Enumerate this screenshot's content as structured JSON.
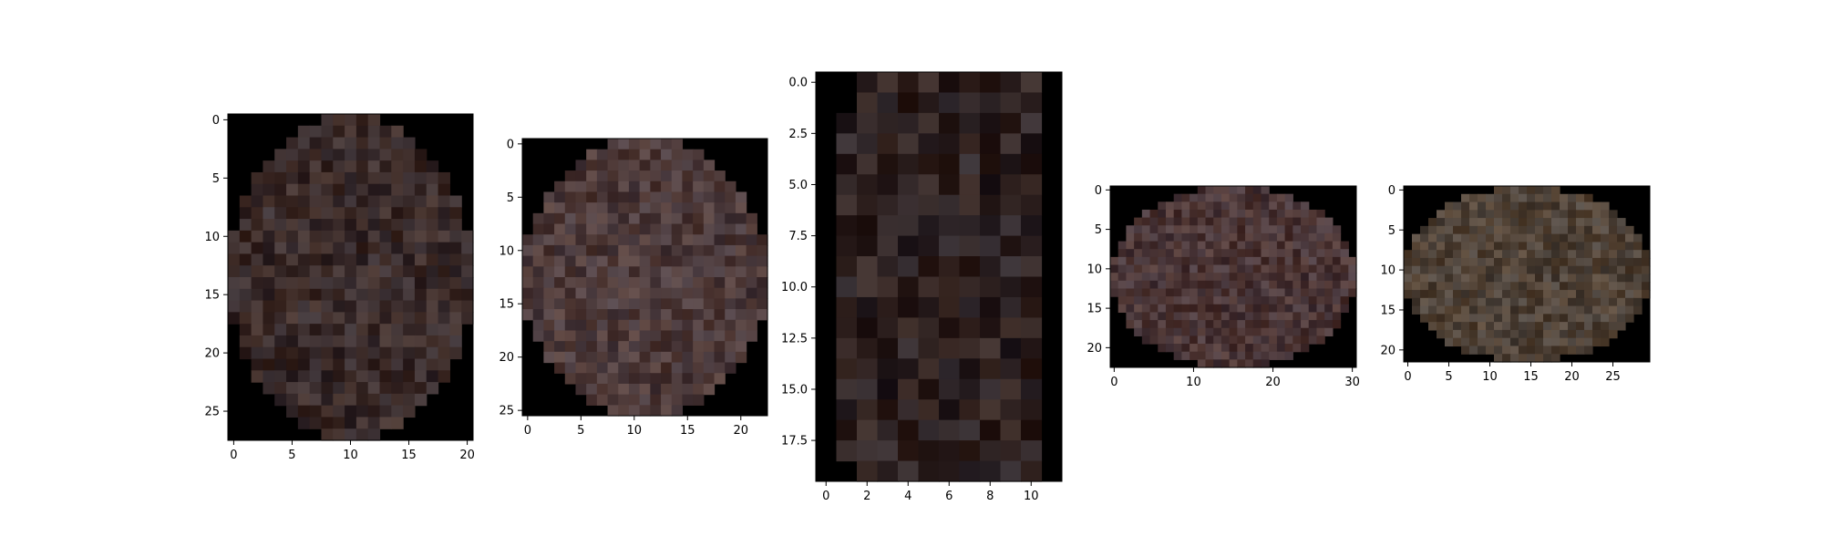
{
  "chart_data": [
    {
      "type": "heatmap",
      "image": {
        "width": 21,
        "height": 28,
        "dominant_color": "#3a2b2a"
      },
      "xlim": [
        -0.5,
        20.5
      ],
      "ylim": [
        27.5,
        -0.5
      ],
      "xticks": [
        0,
        5,
        10,
        15,
        20
      ],
      "xtick_labels": [
        "0",
        "5",
        "10",
        "15",
        "20"
      ],
      "yticks": [
        0,
        5,
        10,
        15,
        20,
        25
      ],
      "ytick_labels": [
        "0",
        "5",
        "10",
        "15",
        "20",
        "25"
      ]
    },
    {
      "type": "heatmap",
      "image": {
        "width": 23,
        "height": 26,
        "dominant_color": "#4d3a3a"
      },
      "xlim": [
        -0.5,
        22.5
      ],
      "ylim": [
        25.5,
        -0.5
      ],
      "xticks": [
        0,
        5,
        10,
        15,
        20
      ],
      "xtick_labels": [
        "0",
        "5",
        "10",
        "15",
        "20"
      ],
      "yticks": [
        0,
        5,
        10,
        15,
        20,
        25
      ],
      "ytick_labels": [
        "0",
        "5",
        "10",
        "15",
        "20",
        "25"
      ]
    },
    {
      "type": "heatmap",
      "image": {
        "width": 12,
        "height": 20,
        "dominant_color": "#2e2222"
      },
      "xlim": [
        -0.5,
        11.5
      ],
      "ylim": [
        19.5,
        -0.5
      ],
      "xticks": [
        0,
        2,
        4,
        6,
        8,
        10
      ],
      "xtick_labels": [
        "0",
        "2",
        "4",
        "6",
        "8",
        "10"
      ],
      "yticks": [
        0,
        2.5,
        5,
        7.5,
        10,
        12.5,
        15,
        17.5
      ],
      "ytick_labels": [
        "0.0",
        "2.5",
        "5.0",
        "7.5",
        "10.0",
        "12.5",
        "15.0",
        "17.5"
      ]
    },
    {
      "type": "heatmap",
      "image": {
        "width": 31,
        "height": 23,
        "dominant_color": "#4a3536"
      },
      "xlim": [
        -0.5,
        30.5
      ],
      "ylim": [
        22.5,
        -0.5
      ],
      "xticks": [
        0,
        10,
        20,
        30
      ],
      "xtick_labels": [
        "0",
        "10",
        "20",
        "30"
      ],
      "yticks": [
        0,
        5,
        10,
        15,
        20
      ],
      "ytick_labels": [
        "0",
        "5",
        "10",
        "15",
        "20"
      ]
    },
    {
      "type": "heatmap",
      "image": {
        "width": 30,
        "height": 22,
        "dominant_color": "#4f4237"
      },
      "xlim": [
        -0.5,
        29.5
      ],
      "ylim": [
        21.5,
        -0.5
      ],
      "xticks": [
        0,
        5,
        10,
        15,
        20,
        25
      ],
      "xtick_labels": [
        "0",
        "5",
        "10",
        "15",
        "20",
        "25"
      ],
      "yticks": [
        0,
        5,
        10,
        15,
        20
      ],
      "ytick_labels": [
        "0",
        "5",
        "10",
        "15",
        "20"
      ]
    }
  ]
}
